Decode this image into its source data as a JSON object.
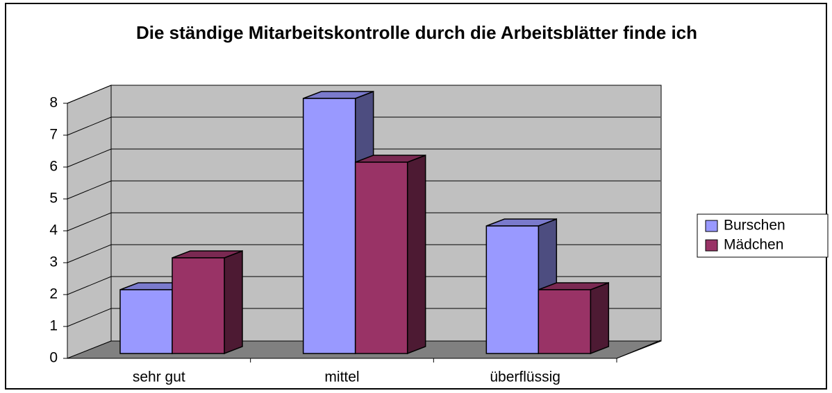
{
  "chart_data": {
    "type": "bar3d",
    "title": "Die ständige Mitarbeitskontrolle durch die Arbeitsblätter finde ich",
    "categories": [
      "sehr gut",
      "mittel",
      "überflüssig"
    ],
    "series": [
      {
        "name": "Burschen",
        "color": "#9999ff",
        "values": [
          2,
          8,
          4
        ]
      },
      {
        "name": "Mädchen",
        "color": "#993366",
        "values": [
          3,
          6,
          2
        ]
      }
    ],
    "ylim": [
      0,
      8
    ],
    "yticks": [
      0,
      1,
      2,
      3,
      4,
      5,
      6,
      7,
      8
    ],
    "grid": true,
    "legend": "right"
  }
}
